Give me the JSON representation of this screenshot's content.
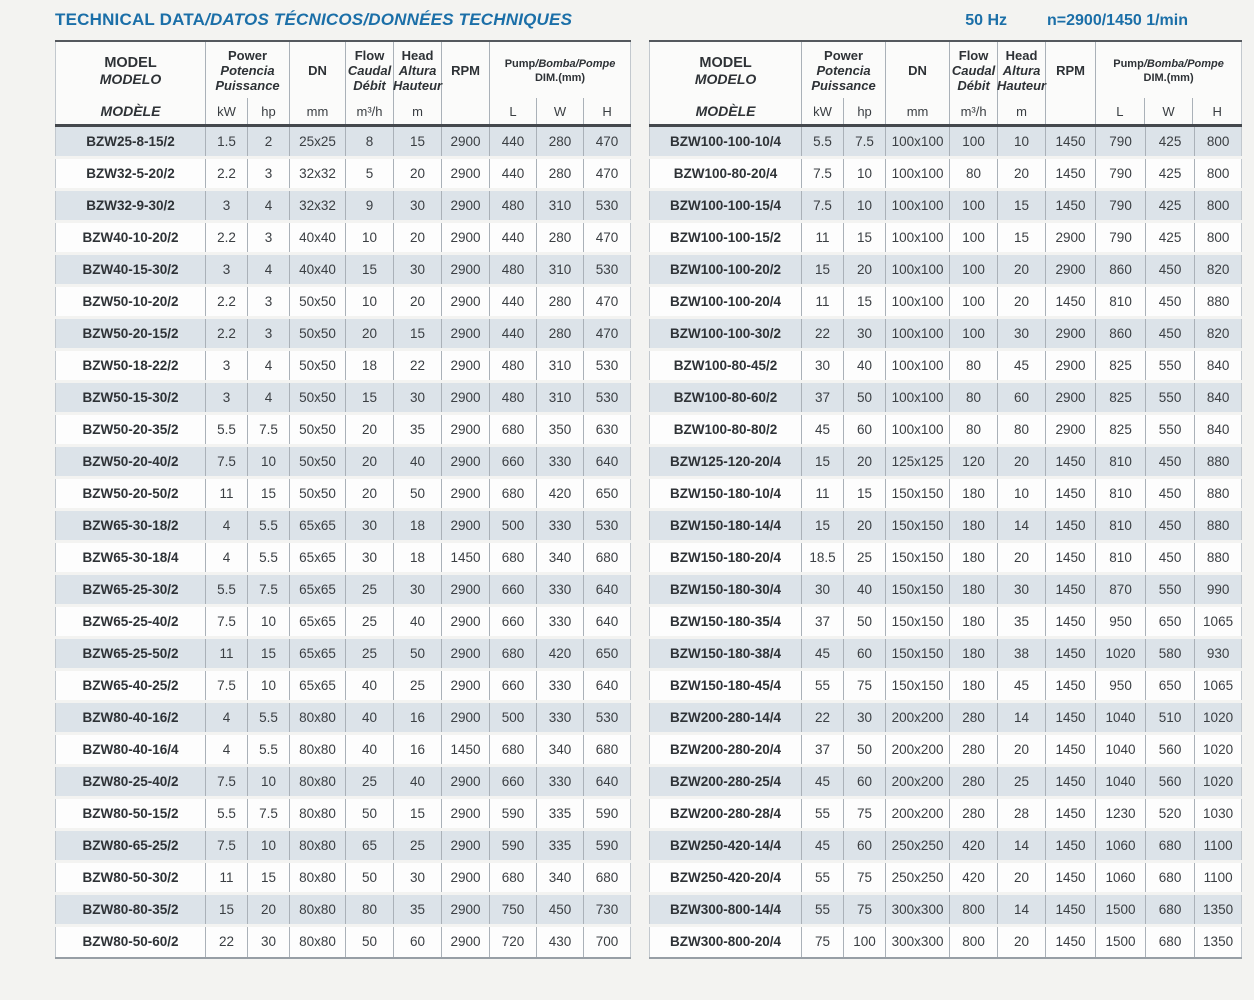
{
  "page": {
    "title_upright": "TECHNICAL DATA",
    "title_italic": "/DATOS TÉCNICOS/DONNÉES TECHNIQUES",
    "frequency": "50 Hz",
    "speed": "n=2900/1450 1/min"
  },
  "colors": {
    "accent_blue": "#1b6fa8",
    "row_stripe": "#dce3e9",
    "header_rule_dark": "#44484d",
    "cell_border": "#aab1b8",
    "page_background": "#f3f3f1",
    "text_dark": "#2e3236"
  },
  "header": {
    "model_lines": [
      "MODEL",
      "MODELO",
      "MODÈLE"
    ],
    "power": {
      "lines": [
        "Power",
        "Potencia",
        "Puissance"
      ],
      "units": [
        "kW",
        "hp"
      ]
    },
    "dn": {
      "label": "DN",
      "unit": "mm"
    },
    "flow": {
      "lines": [
        "Flow",
        "Caudal",
        "Débit"
      ],
      "unit": "m³/h"
    },
    "head": {
      "lines": [
        "Head",
        "Altura",
        "Hauteur"
      ],
      "unit": "m"
    },
    "rpm": {
      "label": "RPM"
    },
    "dim": {
      "line1_upright": "Pump",
      "line1_italic": "/Bomba/Pompe",
      "line2": "DIM.(mm)",
      "units": [
        "L",
        "W",
        "H"
      ]
    }
  },
  "tables": {
    "left": {
      "rows": [
        [
          "BZW25-8-15/2",
          "1.5",
          "2",
          "25x25",
          "8",
          "15",
          "2900",
          "440",
          "280",
          "470"
        ],
        [
          "BZW32-5-20/2",
          "2.2",
          "3",
          "32x32",
          "5",
          "20",
          "2900",
          "440",
          "280",
          "470"
        ],
        [
          "BZW32-9-30/2",
          "3",
          "4",
          "32x32",
          "9",
          "30",
          "2900",
          "480",
          "310",
          "530"
        ],
        [
          "BZW40-10-20/2",
          "2.2",
          "3",
          "40x40",
          "10",
          "20",
          "2900",
          "440",
          "280",
          "470"
        ],
        [
          "BZW40-15-30/2",
          "3",
          "4",
          "40x40",
          "15",
          "30",
          "2900",
          "480",
          "310",
          "530"
        ],
        [
          "BZW50-10-20/2",
          "2.2",
          "3",
          "50x50",
          "10",
          "20",
          "2900",
          "440",
          "280",
          "470"
        ],
        [
          "BZW50-20-15/2",
          "2.2",
          "3",
          "50x50",
          "20",
          "15",
          "2900",
          "440",
          "280",
          "470"
        ],
        [
          "BZW50-18-22/2",
          "3",
          "4",
          "50x50",
          "18",
          "22",
          "2900",
          "480",
          "310",
          "530"
        ],
        [
          "BZW50-15-30/2",
          "3",
          "4",
          "50x50",
          "15",
          "30",
          "2900",
          "480",
          "310",
          "530"
        ],
        [
          "BZW50-20-35/2",
          "5.5",
          "7.5",
          "50x50",
          "20",
          "35",
          "2900",
          "680",
          "350",
          "630"
        ],
        [
          "BZW50-20-40/2",
          "7.5",
          "10",
          "50x50",
          "20",
          "40",
          "2900",
          "660",
          "330",
          "640"
        ],
        [
          "BZW50-20-50/2",
          "11",
          "15",
          "50x50",
          "20",
          "50",
          "2900",
          "680",
          "420",
          "650"
        ],
        [
          "BZW65-30-18/2",
          "4",
          "5.5",
          "65x65",
          "30",
          "18",
          "2900",
          "500",
          "330",
          "530"
        ],
        [
          "BZW65-30-18/4",
          "4",
          "5.5",
          "65x65",
          "30",
          "18",
          "1450",
          "680",
          "340",
          "680"
        ],
        [
          "BZW65-25-30/2",
          "5.5",
          "7.5",
          "65x65",
          "25",
          "30",
          "2900",
          "660",
          "330",
          "640"
        ],
        [
          "BZW65-25-40/2",
          "7.5",
          "10",
          "65x65",
          "25",
          "40",
          "2900",
          "660",
          "330",
          "640"
        ],
        [
          "BZW65-25-50/2",
          "11",
          "15",
          "65x65",
          "25",
          "50",
          "2900",
          "680",
          "420",
          "650"
        ],
        [
          "BZW65-40-25/2",
          "7.5",
          "10",
          "65x65",
          "40",
          "25",
          "2900",
          "660",
          "330",
          "640"
        ],
        [
          "BZW80-40-16/2",
          "4",
          "5.5",
          "80x80",
          "40",
          "16",
          "2900",
          "500",
          "330",
          "530"
        ],
        [
          "BZW80-40-16/4",
          "4",
          "5.5",
          "80x80",
          "40",
          "16",
          "1450",
          "680",
          "340",
          "680"
        ],
        [
          "BZW80-25-40/2",
          "7.5",
          "10",
          "80x80",
          "25",
          "40",
          "2900",
          "660",
          "330",
          "640"
        ],
        [
          "BZW80-50-15/2",
          "5.5",
          "7.5",
          "80x80",
          "50",
          "15",
          "2900",
          "590",
          "335",
          "590"
        ],
        [
          "BZW80-65-25/2",
          "7.5",
          "10",
          "80x80",
          "65",
          "25",
          "2900",
          "590",
          "335",
          "590"
        ],
        [
          "BZW80-50-30/2",
          "11",
          "15",
          "80x80",
          "50",
          "30",
          "2900",
          "680",
          "340",
          "680"
        ],
        [
          "BZW80-80-35/2",
          "15",
          "20",
          "80x80",
          "80",
          "35",
          "2900",
          "750",
          "450",
          "730"
        ],
        [
          "BZW80-50-60/2",
          "22",
          "30",
          "80x80",
          "50",
          "60",
          "2900",
          "720",
          "430",
          "700"
        ]
      ]
    },
    "right": {
      "rows": [
        [
          "BZW100-100-10/4",
          "5.5",
          "7.5",
          "100x100",
          "100",
          "10",
          "1450",
          "790",
          "425",
          "800"
        ],
        [
          "BZW100-80-20/4",
          "7.5",
          "10",
          "100x100",
          "80",
          "20",
          "1450",
          "790",
          "425",
          "800"
        ],
        [
          "BZW100-100-15/4",
          "7.5",
          "10",
          "100x100",
          "100",
          "15",
          "1450",
          "790",
          "425",
          "800"
        ],
        [
          "BZW100-100-15/2",
          "11",
          "15",
          "100x100",
          "100",
          "15",
          "2900",
          "790",
          "425",
          "800"
        ],
        [
          "BZW100-100-20/2",
          "15",
          "20",
          "100x100",
          "100",
          "20",
          "2900",
          "860",
          "450",
          "820"
        ],
        [
          "BZW100-100-20/4",
          "11",
          "15",
          "100x100",
          "100",
          "20",
          "1450",
          "810",
          "450",
          "880"
        ],
        [
          "BZW100-100-30/2",
          "22",
          "30",
          "100x100",
          "100",
          "30",
          "2900",
          "860",
          "450",
          "820"
        ],
        [
          "BZW100-80-45/2",
          "30",
          "40",
          "100x100",
          "80",
          "45",
          "2900",
          "825",
          "550",
          "840"
        ],
        [
          "BZW100-80-60/2",
          "37",
          "50",
          "100x100",
          "80",
          "60",
          "2900",
          "825",
          "550",
          "840"
        ],
        [
          "BZW100-80-80/2",
          "45",
          "60",
          "100x100",
          "80",
          "80",
          "2900",
          "825",
          "550",
          "840"
        ],
        [
          "BZW125-120-20/4",
          "15",
          "20",
          "125x125",
          "120",
          "20",
          "1450",
          "810",
          "450",
          "880"
        ],
        [
          "BZW150-180-10/4",
          "11",
          "15",
          "150x150",
          "180",
          "10",
          "1450",
          "810",
          "450",
          "880"
        ],
        [
          "BZW150-180-14/4",
          "15",
          "20",
          "150x150",
          "180",
          "14",
          "1450",
          "810",
          "450",
          "880"
        ],
        [
          "BZW150-180-20/4",
          "18.5",
          "25",
          "150x150",
          "180",
          "20",
          "1450",
          "810",
          "450",
          "880"
        ],
        [
          "BZW150-180-30/4",
          "30",
          "40",
          "150x150",
          "180",
          "30",
          "1450",
          "870",
          "550",
          "990"
        ],
        [
          "BZW150-180-35/4",
          "37",
          "50",
          "150x150",
          "180",
          "35",
          "1450",
          "950",
          "650",
          "1065"
        ],
        [
          "BZW150-180-38/4",
          "45",
          "60",
          "150x150",
          "180",
          "38",
          "1450",
          "1020",
          "580",
          "930"
        ],
        [
          "BZW150-180-45/4",
          "55",
          "75",
          "150x150",
          "180",
          "45",
          "1450",
          "950",
          "650",
          "1065"
        ],
        [
          "BZW200-280-14/4",
          "22",
          "30",
          "200x200",
          "280",
          "14",
          "1450",
          "1040",
          "510",
          "1020"
        ],
        [
          "BZW200-280-20/4",
          "37",
          "50",
          "200x200",
          "280",
          "20",
          "1450",
          "1040",
          "560",
          "1020"
        ],
        [
          "BZW200-280-25/4",
          "45",
          "60",
          "200x200",
          "280",
          "25",
          "1450",
          "1040",
          "560",
          "1020"
        ],
        [
          "BZW200-280-28/4",
          "55",
          "75",
          "200x200",
          "280",
          "28",
          "1450",
          "1230",
          "520",
          "1030"
        ],
        [
          "BZW250-420-14/4",
          "45",
          "60",
          "250x250",
          "420",
          "14",
          "1450",
          "1060",
          "680",
          "1100"
        ],
        [
          "BZW250-420-20/4",
          "55",
          "75",
          "250x250",
          "420",
          "20",
          "1450",
          "1060",
          "680",
          "1100"
        ],
        [
          "BZW300-800-14/4",
          "55",
          "75",
          "300x300",
          "800",
          "14",
          "1450",
          "1500",
          "680",
          "1350"
        ],
        [
          "BZW300-800-20/4",
          "75",
          "100",
          "300x300",
          "800",
          "20",
          "1450",
          "1500",
          "680",
          "1350"
        ]
      ]
    }
  }
}
